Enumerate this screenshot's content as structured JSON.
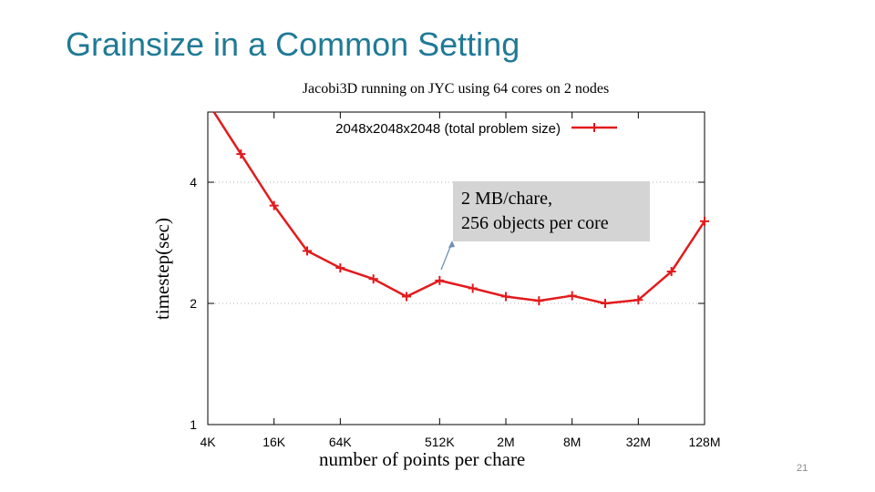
{
  "slide": {
    "title": "Grainsize in a Common Setting",
    "page_number": "21"
  },
  "callout": {
    "line1": "2 MB/chare,",
    "line2": "256 objects per core"
  },
  "colors": {
    "series": "#e31a1c",
    "title": "#1f7a96",
    "callout_bg": "#d4d4d4"
  },
  "chart_data": {
    "type": "line",
    "title": "Jacobi3D running on JYC using 64 cores on 2 nodes",
    "xlabel": "number of points per chare",
    "ylabel": "timestep(sec)",
    "x_scale": "log2",
    "y_scale": "log2",
    "x_ticks": [
      "4K",
      "16K",
      "64K",
      "512K",
      "2M",
      "8M",
      "32M",
      "128M"
    ],
    "y_ticks": [
      "1",
      "2",
      "4"
    ],
    "ylim": [
      1,
      5.2
    ],
    "grid": "horizontal dotted",
    "legend_position": "top",
    "series": [
      {
        "name": "2048x2048x2048 (total problem size)",
        "points": [
          {
            "x": "8K",
            "y": 4.7
          },
          {
            "x": "16K",
            "y": 3.5
          },
          {
            "x": "32K",
            "y": 2.7
          },
          {
            "x": "64K",
            "y": 2.45
          },
          {
            "x": "128K",
            "y": 2.3
          },
          {
            "x": "256K",
            "y": 2.08
          },
          {
            "x": "512K",
            "y": 2.28
          },
          {
            "x": "1M",
            "y": 2.18
          },
          {
            "x": "2M",
            "y": 2.08
          },
          {
            "x": "4M",
            "y": 2.03
          },
          {
            "x": "8M",
            "y": 2.09
          },
          {
            "x": "16M",
            "y": 2.0
          },
          {
            "x": "32M",
            "y": 2.04
          },
          {
            "x": "64M",
            "y": 2.4
          },
          {
            "x": "128M",
            "y": 3.2
          }
        ]
      }
    ]
  }
}
